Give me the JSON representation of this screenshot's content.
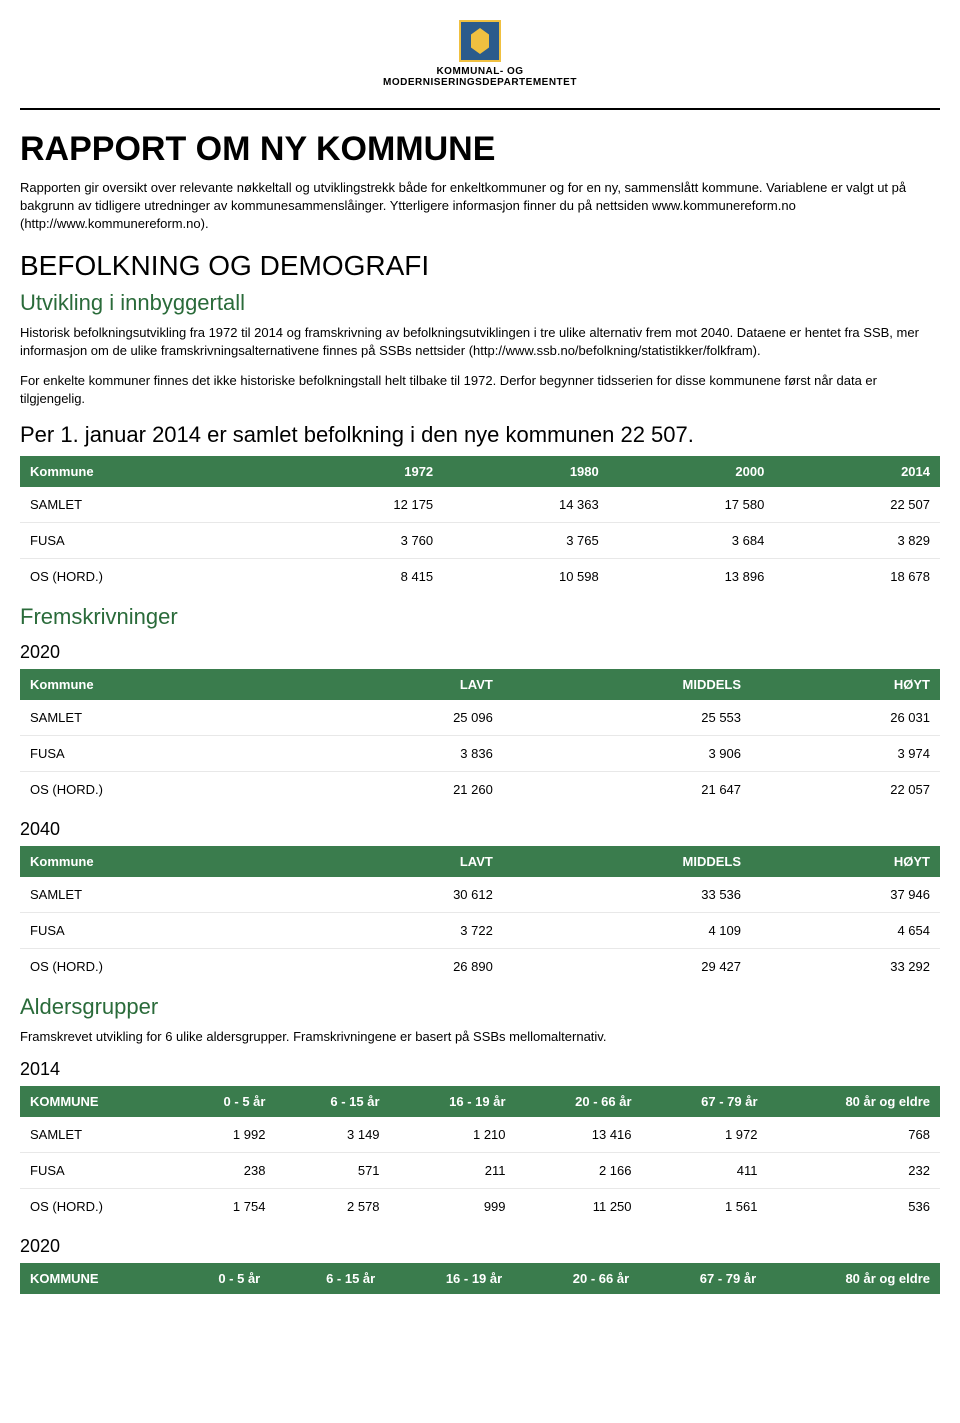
{
  "header": {
    "dept1": "KOMMUNAL- OG",
    "dept2": "MODERNISERINGSDEPARTEMENTET"
  },
  "title": "RAPPORT OM NY KOMMUNE",
  "intro_p1": "Rapporten gir oversikt over relevante nøkkeltall og utviklingstrekk både for enkeltkommuner og for en ny, sammenslått kommune. Variablene er valgt ut på bakgrunn av tidligere utredninger av kommunesammenslåinger. Ytterligere informasjon finner du på nettsiden www.kommunereform.no (http://www.kommunereform.no).",
  "section_befolkning": "BEFOLKNING OG DEMOGRAFI",
  "sub_utvikling": "Utvikling i innbyggertall",
  "utvikling_p1": "Historisk befolkningsutvikling fra 1972 til 2014 og framskrivning av befolkningsutviklingen i tre ulike alternativ frem mot 2040. Dataene er hentet fra SSB, mer informasjon om de ulike framskrivningsalternativene finnes på SSBs nettsider (http://www.ssb.no/befolkning/statistikker/folkfram).",
  "utvikling_p2": "For enkelte kommuner finnes det ikke historiske befolkningstall helt tilbake til 1972. Derfor begynner tidsserien for disse kommunene først når data er tilgjengelig.",
  "per1_heading": "Per 1. januar 2014 er samlet befolkning i den nye kommunen 22 507.",
  "hist_table": {
    "columns": [
      "Kommune",
      "1972",
      "1980",
      "2000",
      "2014"
    ],
    "rows": [
      [
        "SAMLET",
        "12 175",
        "14 363",
        "17 580",
        "22 507"
      ],
      [
        "FUSA",
        "3 760",
        "3 765",
        "3 684",
        "3 829"
      ],
      [
        "OS (HORD.)",
        "8 415",
        "10 598",
        "13 896",
        "18 678"
      ]
    ]
  },
  "fremskriv_heading": "Fremskrivninger",
  "y2020": "2020",
  "proj_cols": [
    "Kommune",
    "LAVT",
    "MIDDELS",
    "HØYT"
  ],
  "proj2020_rows": [
    [
      "SAMLET",
      "25 096",
      "25 553",
      "26 031"
    ],
    [
      "FUSA",
      "3 836",
      "3 906",
      "3 974"
    ],
    [
      "OS (HORD.)",
      "21 260",
      "21 647",
      "22 057"
    ]
  ],
  "y2040": "2040",
  "proj2040_rows": [
    [
      "SAMLET",
      "30 612",
      "33 536",
      "37 946"
    ],
    [
      "FUSA",
      "3 722",
      "4 109",
      "4 654"
    ],
    [
      "OS (HORD.)",
      "26 890",
      "29 427",
      "33 292"
    ]
  ],
  "alders_heading": "Aldersgrupper",
  "alders_p": "Framskrevet utvikling for 6 ulike aldersgrupper. Framskrivningene er basert på SSBs mellomalternativ.",
  "y2014": "2014",
  "age_cols": [
    "KOMMUNE",
    "0 - 5 år",
    "6 - 15 år",
    "16 - 19 år",
    "20 - 66 år",
    "67 - 79 år",
    "80 år og eldre"
  ],
  "age2014_rows": [
    [
      "SAMLET",
      "1 992",
      "3 149",
      "1 210",
      "13 416",
      "1 972",
      "768"
    ],
    [
      "FUSA",
      "238",
      "571",
      "211",
      "2 166",
      "411",
      "232"
    ],
    [
      "OS (HORD.)",
      "1 754",
      "2 578",
      "999",
      "11 250",
      "1 561",
      "536"
    ]
  ],
  "y2020b": "2020",
  "style": {
    "header_bg": "#3a7c4d",
    "header_fg": "#ffffff",
    "sub_color": "#2a6b3a",
    "body_font_size": 13,
    "title_font_size": 34
  }
}
